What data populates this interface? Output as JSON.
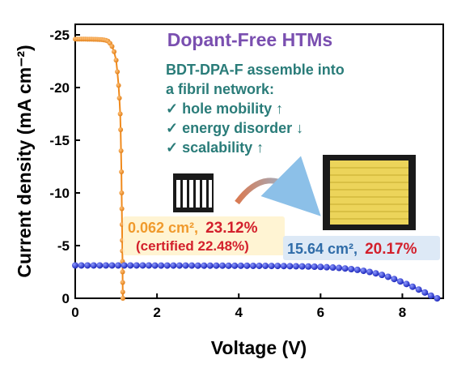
{
  "chart_data": {
    "type": "line",
    "title": "Dopant-Free HTMs",
    "xlabel": "Voltage (V)",
    "ylabel": "Current density (mA cm⁻²)",
    "xlim": [
      0,
      9
    ],
    "ylim": [
      0,
      -26
    ],
    "xticks": [
      "0",
      "2",
      "4",
      "6",
      "8"
    ],
    "yticks": [
      "-25",
      "-20",
      "-15",
      "-10",
      "-5",
      "0"
    ],
    "grid": false,
    "series": [
      {
        "color": "#f08a1c",
        "marker": "circle",
        "x": [
          0,
          0.05,
          0.1,
          0.15,
          0.2,
          0.25,
          0.3,
          0.35,
          0.4,
          0.45,
          0.5,
          0.55,
          0.6,
          0.65,
          0.7,
          0.75,
          0.8,
          0.85,
          0.9,
          0.95,
          1.0,
          1.03,
          1.06,
          1.08,
          1.1,
          1.11,
          1.12,
          1.13,
          1.135,
          1.14,
          1.145,
          1.15,
          1.153,
          1.156,
          1.158,
          1.16,
          1.162,
          1.165
        ],
        "y": [
          -24.6,
          -24.6,
          -24.6,
          -24.6,
          -24.6,
          -24.6,
          -24.59,
          -24.59,
          -24.59,
          -24.58,
          -24.58,
          -24.57,
          -24.56,
          -24.55,
          -24.52,
          -24.48,
          -24.4,
          -24.2,
          -23.9,
          -23.4,
          -22.6,
          -21.5,
          -20.2,
          -19.0,
          -17.5,
          -16.0,
          -14.0,
          -12.0,
          -10.0,
          -8.5,
          -7.0,
          -5.5,
          -4.5,
          -3.5,
          -2.5,
          -1.5,
          -0.6,
          0
        ]
      },
      {
        "color": "#1f2bd6",
        "marker": "circle",
        "x": [
          0,
          0.15,
          0.3,
          0.45,
          0.6,
          0.75,
          0.9,
          1.05,
          1.2,
          1.35,
          1.5,
          1.65,
          1.8,
          1.95,
          2.1,
          2.25,
          2.4,
          2.55,
          2.7,
          2.85,
          3.0,
          3.15,
          3.3,
          3.45,
          3.6,
          3.75,
          3.9,
          4.05,
          4.2,
          4.35,
          4.5,
          4.65,
          4.8,
          4.95,
          5.1,
          5.25,
          5.4,
          5.55,
          5.7,
          5.85,
          6.0,
          6.15,
          6.3,
          6.45,
          6.6,
          6.75,
          6.9,
          7.05,
          7.2,
          7.35,
          7.5,
          7.65,
          7.8,
          7.95,
          8.1,
          8.25,
          8.4,
          8.55,
          8.7,
          8.85
        ],
        "y": [
          -3.12,
          -3.12,
          -3.12,
          -3.12,
          -3.12,
          -3.12,
          -3.12,
          -3.12,
          -3.12,
          -3.12,
          -3.12,
          -3.12,
          -3.12,
          -3.11,
          -3.11,
          -3.11,
          -3.11,
          -3.11,
          -3.11,
          -3.11,
          -3.1,
          -3.1,
          -3.1,
          -3.1,
          -3.1,
          -3.09,
          -3.09,
          -3.09,
          -3.09,
          -3.08,
          -3.08,
          -3.08,
          -3.07,
          -3.07,
          -3.06,
          -3.05,
          -3.04,
          -3.03,
          -3.02,
          -3.0,
          -2.98,
          -2.95,
          -2.92,
          -2.88,
          -2.83,
          -2.77,
          -2.7,
          -2.61,
          -2.5,
          -2.37,
          -2.22,
          -2.04,
          -1.83,
          -1.6,
          -1.36,
          -1.1,
          -0.83,
          -0.55,
          -0.25,
          0
        ]
      }
    ],
    "annotations": {
      "subtitle_line1": "BDT-DPA-F assemble  into",
      "subtitle_line2": "a fibril network:",
      "bullets": [
        "✓  hole mobility ↑",
        "✓  energy disorder ↓",
        "✓  scalability ↑"
      ],
      "small_area": "0.062 cm²,",
      "small_pce": "23.12%",
      "certified": "(certified 22.48%)",
      "large_area": "15.64 cm²,",
      "large_pce": "20.17%"
    }
  }
}
